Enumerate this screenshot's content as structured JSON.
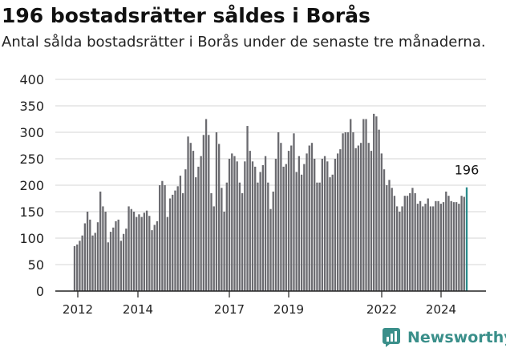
{
  "title": "196 bostadsrätter såldes i Borås",
  "subtitle": "Antal sålda bostadsrätter i Borås under de senaste tre månaderna.",
  "brand": "Newsworthy",
  "colors": {
    "bar": "#6b6b70",
    "highlight": "#2a8c8c",
    "grid": "#d4d4d4",
    "axis": "#222222"
  },
  "chart_data": {
    "type": "bar",
    "ylim": [
      0,
      400
    ],
    "yticks": [
      0,
      50,
      100,
      150,
      200,
      250,
      300,
      350,
      400
    ],
    "xtick_labels": [
      "2012",
      "2014",
      "2017",
      "2019",
      "2022",
      "2024"
    ],
    "series": [
      {
        "values": [
          85,
          88,
          95,
          105,
          128,
          150,
          135,
          105,
          110,
          130,
          188,
          160,
          150,
          92,
          112,
          120,
          132,
          135,
          95,
          108,
          118,
          160,
          155,
          150,
          140,
          145,
          140,
          148,
          152,
          142,
          115,
          125,
          132,
          200,
          208,
          200,
          140,
          175,
          182,
          190,
          198,
          218,
          185,
          230,
          292,
          280,
          265,
          215,
          235,
          255,
          295,
          325,
          295,
          185,
          160,
          300,
          278,
          195,
          150,
          205,
          250,
          260,
          255,
          245,
          205,
          185,
          245,
          312,
          265,
          245,
          235,
          205,
          225,
          238,
          255,
          205,
          155,
          188,
          250,
          300,
          280,
          235,
          240,
          265,
          275,
          298,
          225,
          255,
          220,
          240,
          260,
          275,
          280,
          250,
          205,
          205,
          250,
          255,
          245,
          215,
          220,
          250,
          260,
          268,
          298,
          300,
          300,
          325,
          300,
          270,
          275,
          280,
          325,
          325,
          280,
          265,
          335,
          330,
          305,
          260,
          230,
          200,
          210,
          195,
          180,
          160,
          150,
          160,
          180,
          180,
          185,
          195,
          185,
          165,
          170,
          160,
          165,
          175,
          160,
          160,
          170,
          170,
          165,
          168,
          188,
          180,
          170,
          168,
          168,
          165,
          180,
          178,
          196
        ]
      }
    ],
    "highlight_index": 152,
    "highlight_label": "196"
  }
}
